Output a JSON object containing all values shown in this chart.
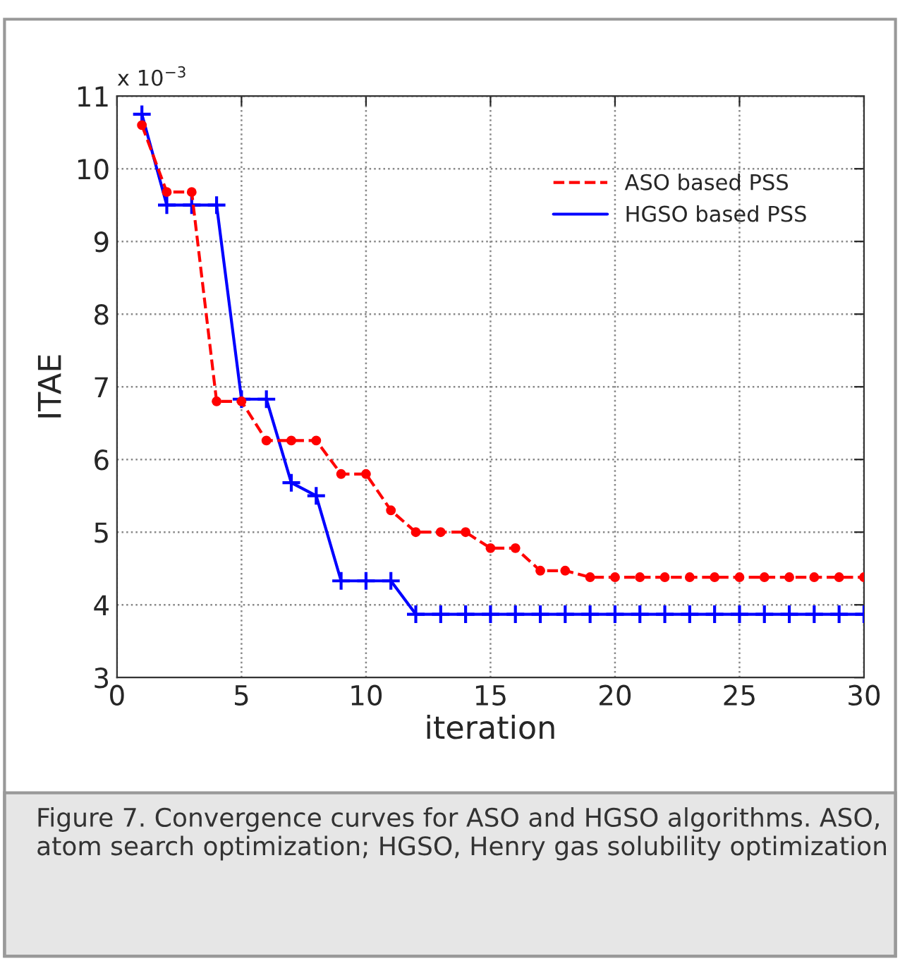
{
  "chart_data": {
    "type": "line",
    "xlabel": "iteration",
    "ylabel": "ITAE",
    "x": [
      1,
      2,
      3,
      4,
      5,
      6,
      7,
      8,
      9,
      10,
      11,
      12,
      13,
      14,
      15,
      16,
      17,
      18,
      19,
      20,
      21,
      22,
      23,
      24,
      25,
      26,
      27,
      28,
      29,
      30
    ],
    "series": [
      {
        "name": "ASO based PSS",
        "color": "#ff0000",
        "marker": "circle",
        "line_style": "dashed",
        "values": [
          10.6,
          9.68,
          9.68,
          6.8,
          6.8,
          6.26,
          6.26,
          6.26,
          5.8,
          5.8,
          5.3,
          5.0,
          5.0,
          5.0,
          4.78,
          4.78,
          4.47,
          4.47,
          4.38,
          4.38,
          4.38,
          4.38,
          4.38,
          4.38,
          4.38,
          4.38,
          4.38,
          4.38,
          4.38,
          4.38
        ]
      },
      {
        "name": "HGSO based PSS",
        "color": "#0000ff",
        "marker": "cross",
        "line_style": "solid",
        "values": [
          10.75,
          9.5,
          9.5,
          9.5,
          6.83,
          6.83,
          5.68,
          5.5,
          4.33,
          4.33,
          4.33,
          3.87,
          3.87,
          3.87,
          3.87,
          3.87,
          3.87,
          3.87,
          3.87,
          3.87,
          3.87,
          3.87,
          3.87,
          3.87,
          3.87,
          3.87,
          3.87,
          3.87,
          3.87,
          3.87
        ]
      }
    ],
    "xlim": [
      0,
      30
    ],
    "xticks": [
      0,
      5,
      10,
      15,
      20,
      25,
      30
    ],
    "ylim": [
      3,
      11
    ],
    "yticks": [
      3,
      4,
      5,
      6,
      7,
      8,
      9,
      10,
      11
    ],
    "grid": true,
    "legend": "top right",
    "annotations": [
      "x 10$^{−3}$",
      "Figure 7. Convergence curves for ASO and HGSO algorithms. ASO, atom search optimization; HGSO, Henry gas solubility optimization"
    ]
  }
}
